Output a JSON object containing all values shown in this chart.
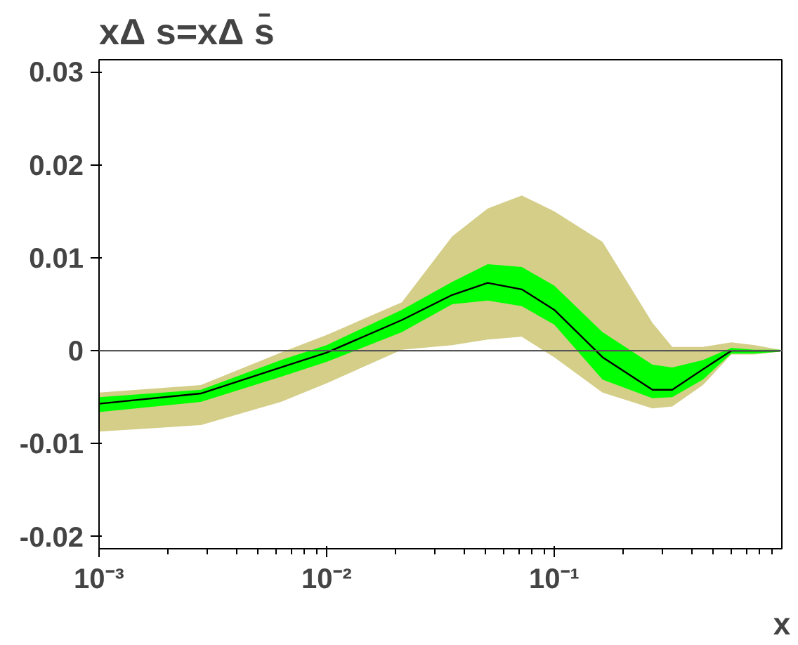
{
  "chart_data": {
    "type": "line",
    "title": "xΔ s=xΔ s̄",
    "xlabel": "x",
    "log": "x",
    "x": [
      0.001,
      0.0028,
      0.0063,
      0.01,
      0.0214,
      0.0356,
      0.051,
      0.072,
      0.1,
      0.163,
      0.27,
      0.33,
      0.45,
      0.6,
      0.76,
      0.98
    ],
    "series": [
      {
        "color": "#d4ce88",
        "values": [
          null,
          null,
          null,
          null,
          null,
          null,
          null,
          null,
          null,
          null,
          null,
          null,
          null,
          null,
          null,
          null
        ],
        "lower": [
          -0.0087,
          -0.008,
          -0.0055,
          -0.0035,
          0.0001,
          0.0006,
          0.0012,
          0.0015,
          -0.0007,
          -0.0045,
          -0.0062,
          -0.006,
          -0.0037,
          -0.0004,
          -0.0004,
          -0.0001
        ],
        "upper": [
          -0.0045,
          -0.0037,
          -0.0002,
          0.0017,
          0.0052,
          0.0123,
          0.0153,
          0.0167,
          0.015,
          0.0117,
          0.003,
          0.0004,
          0.0004,
          0.0009,
          0.0006,
          0.0001
        ]
      },
      {
        "color": "#00ff00",
        "values": [
          null,
          null,
          null,
          null,
          null,
          null,
          null,
          null,
          null,
          null,
          null,
          null,
          null,
          null,
          null,
          null
        ],
        "lower": [
          -0.0066,
          -0.0055,
          -0.0028,
          -0.0012,
          0.002,
          0.005,
          0.0054,
          0.0048,
          0.0028,
          -0.0031,
          -0.0051,
          -0.005,
          -0.0031,
          -0.0003,
          -0.0003,
          -0.0001
        ],
        "upper": [
          -0.005,
          -0.0042,
          -0.001,
          0.0006,
          0.0044,
          0.0074,
          0.0093,
          0.009,
          0.007,
          0.002,
          -0.0015,
          -0.0018,
          -0.001,
          0.0003,
          0.0001,
          0.0001
        ]
      },
      {
        "type": "line",
        "color": "#000000",
        "values": [
          -0.0057,
          -0.0046,
          -0.0018,
          -0.0002,
          0.0033,
          0.006,
          0.0073,
          0.0066,
          0.0044,
          -0.0007,
          -0.0042,
          -0.0042,
          -0.002,
          0.0,
          0.0,
          0.0
        ]
      }
    ],
    "ref_lines": [
      {
        "axis": "y",
        "value": 0,
        "color": "#555555"
      }
    ],
    "xlim": [
      0.001,
      1
    ],
    "ylim": [
      -0.0213,
      0.0313
    ],
    "xticks": [
      {
        "value": 0.001,
        "label": "10⁻³"
      },
      {
        "value": 0.01,
        "label": "10⁻²"
      },
      {
        "value": 0.1,
        "label": "10⁻¹"
      }
    ],
    "yticks": [
      -0.02,
      -0.01,
      0,
      0.01,
      0.02,
      0.03
    ],
    "grid": false
  }
}
